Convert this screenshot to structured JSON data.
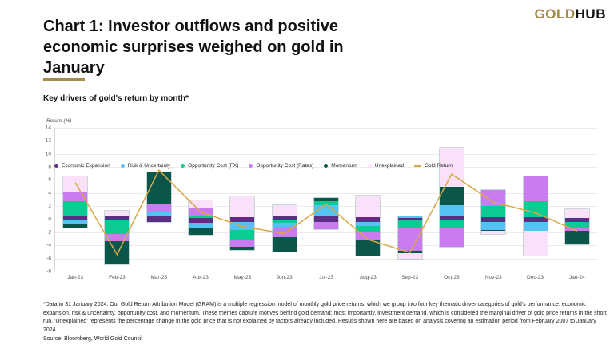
{
  "logo": {
    "gold": "GOLD",
    "hub": "HUB"
  },
  "header": {
    "title": "Chart 1: Investor outflows and positive economic surprises weighed on gold in January",
    "subtitle": "Key drivers of gold's return by month*"
  },
  "chart_data": {
    "type": "bar",
    "stacked": true,
    "title": "Key drivers of gold's return by month*",
    "ylabel": "Return (%)",
    "ylim": [
      -8,
      14
    ],
    "ytick_step": 2,
    "grid": true,
    "legend_position": "bottom",
    "categories": [
      "Jan-23",
      "Feb-23",
      "Mar-23",
      "Apr-23",
      "May-23",
      "Jun-23",
      "Jul-23",
      "Aug-23",
      "Sep-23",
      "Oct-23",
      "Nov-23",
      "Dec-23",
      "Jan-24"
    ],
    "series_colors": {
      "econ": "#5b2e84",
      "risk": "#54c3f1",
      "fx": "#0acb92",
      "rates": "#cb7bf0",
      "momentum": "#0b564a",
      "unexplained": "#f9e1fa",
      "gold": "#dba843"
    },
    "legend": [
      {
        "key": "econ",
        "label": "Economic Expansion",
        "marker": "dot"
      },
      {
        "key": "risk",
        "label": "Risk & Uncertainty",
        "marker": "dot"
      },
      {
        "key": "fx",
        "label": "Opportunity Cost (FX)",
        "marker": "dot"
      },
      {
        "key": "rates",
        "label": "Opportunity Cost (Rates)",
        "marker": "dot"
      },
      {
        "key": "momentum",
        "label": "Momentum",
        "marker": "dot"
      },
      {
        "key": "unexplained",
        "label": "Unexplained",
        "marker": "dot"
      },
      {
        "key": "gold",
        "label": "Gold Return",
        "marker": "dash"
      }
    ],
    "line_series": {
      "name": "Gold Return",
      "values": [
        5.6,
        -5.4,
        7.5,
        1.1,
        -1.1,
        -2.2,
        2.3,
        -3.1,
        -5.1,
        6.9,
        2.6,
        1.0,
        -1.8
      ]
    },
    "months": [
      {
        "label": "Jan-23",
        "gold_return": 5.6,
        "segments": [
          {
            "series": "unexplained",
            "from": 6.5,
            "to": 4.1
          },
          {
            "series": "rates",
            "from": 4.1,
            "to": 2.7
          },
          {
            "series": "fx",
            "from": 2.7,
            "to": 0.5
          },
          {
            "series": "econ",
            "from": 0.5,
            "to": -0.2
          },
          {
            "series": "risk",
            "from": -0.2,
            "to": -0.7
          },
          {
            "series": "momentum",
            "from": -0.7,
            "to": -1.3
          }
        ]
      },
      {
        "label": "Feb-23",
        "gold_return": -5.4,
        "segments": [
          {
            "series": "unexplained",
            "from": 1.3,
            "to": 0.6
          },
          {
            "series": "econ",
            "from": 0.6,
            "to": 0.0
          },
          {
            "series": "fx",
            "from": 0.0,
            "to": -2.2
          },
          {
            "series": "rates",
            "from": -2.2,
            "to": -3.4
          },
          {
            "series": "momentum",
            "from": -3.4,
            "to": -6.9
          }
        ]
      },
      {
        "label": "Mar-23",
        "gold_return": 7.5,
        "segments": [
          {
            "series": "momentum",
            "from": 7.2,
            "to": 2.4
          },
          {
            "series": "rates",
            "from": 2.4,
            "to": 1.1
          },
          {
            "series": "risk",
            "from": 1.1,
            "to": 0.4
          },
          {
            "series": "econ",
            "from": 0.4,
            "to": -0.4
          }
        ]
      },
      {
        "label": "Apr-23",
        "gold_return": 1.1,
        "segments": [
          {
            "series": "unexplained",
            "from": 2.9,
            "to": 1.7
          },
          {
            "series": "rates",
            "from": 1.7,
            "to": 0.5
          },
          {
            "series": "fx",
            "from": 0.5,
            "to": 0.2
          },
          {
            "series": "econ",
            "from": 0.2,
            "to": -0.6
          },
          {
            "series": "risk",
            "from": -0.6,
            "to": -1.3
          },
          {
            "series": "momentum",
            "from": -1.3,
            "to": -2.4
          }
        ]
      },
      {
        "label": "May-23",
        "gold_return": -1.1,
        "segments": [
          {
            "series": "unexplained",
            "from": 3.5,
            "to": 0.3
          },
          {
            "series": "econ",
            "from": 0.3,
            "to": -0.4
          },
          {
            "series": "risk",
            "from": -0.4,
            "to": -1.6
          },
          {
            "series": "fx",
            "from": -1.6,
            "to": -3.1
          },
          {
            "series": "rates",
            "from": -3.1,
            "to": -4.2
          },
          {
            "series": "momentum",
            "from": -4.2,
            "to": -4.7
          }
        ]
      },
      {
        "label": "Jun-23",
        "gold_return": -2.2,
        "segments": [
          {
            "series": "unexplained",
            "from": 2.1,
            "to": 0.6
          },
          {
            "series": "econ",
            "from": 0.6,
            "to": -0.1
          },
          {
            "series": "fx",
            "from": -0.1,
            "to": -0.6
          },
          {
            "series": "risk",
            "from": -0.6,
            "to": -1.1
          },
          {
            "series": "rates",
            "from": -1.1,
            "to": -2.8
          },
          {
            "series": "momentum",
            "from": -2.8,
            "to": -4.9
          }
        ]
      },
      {
        "label": "Jul-23",
        "gold_return": 2.3,
        "segments": [
          {
            "series": "momentum",
            "from": 3.2,
            "to": 2.7
          },
          {
            "series": "fx",
            "from": 2.7,
            "to": 2.2
          },
          {
            "series": "risk",
            "from": 2.2,
            "to": 0.4
          },
          {
            "series": "econ",
            "from": 0.4,
            "to": -0.4
          },
          {
            "series": "rates",
            "from": -0.4,
            "to": -1.5
          }
        ]
      },
      {
        "label": "Aug-23",
        "gold_return": -3.1,
        "segments": [
          {
            "series": "unexplained",
            "from": 3.6,
            "to": 0.3
          },
          {
            "series": "econ",
            "from": 0.3,
            "to": -0.4
          },
          {
            "series": "risk",
            "from": -0.4,
            "to": -1.0
          },
          {
            "series": "fx",
            "from": -1.0,
            "to": -2.0
          },
          {
            "series": "rates",
            "from": -2.0,
            "to": -3.2
          },
          {
            "series": "momentum",
            "from": -3.2,
            "to": -5.5
          }
        ]
      },
      {
        "label": "Sep-23",
        "gold_return": -5.1,
        "segments": [
          {
            "series": "risk",
            "from": 0.45,
            "to": 0.2
          },
          {
            "series": "econ",
            "from": 0.2,
            "to": -0.2
          },
          {
            "series": "fx",
            "from": -0.2,
            "to": -1.4
          },
          {
            "series": "rates",
            "from": -1.4,
            "to": -4.8
          },
          {
            "series": "momentum",
            "from": -4.8,
            "to": -5.2
          },
          {
            "series": "unexplained",
            "from": -5.2,
            "to": -6.0
          }
        ]
      },
      {
        "label": "Oct-23",
        "gold_return": 6.9,
        "segments": [
          {
            "series": "unexplained",
            "from": 11.0,
            "to": 5.0
          },
          {
            "series": "momentum",
            "from": 5.0,
            "to": 2.2
          },
          {
            "series": "risk",
            "from": 2.2,
            "to": 0.5
          },
          {
            "series": "econ",
            "from": 0.5,
            "to": -0.2
          },
          {
            "series": "fx",
            "from": -0.2,
            "to": -1.3
          },
          {
            "series": "rates",
            "from": -1.3,
            "to": -4.2
          }
        ]
      },
      {
        "label": "Nov-23",
        "gold_return": 2.6,
        "segments": [
          {
            "series": "rates",
            "from": 4.5,
            "to": 2.0
          },
          {
            "series": "fx",
            "from": 2.0,
            "to": 0.3
          },
          {
            "series": "econ",
            "from": 0.3,
            "to": -0.4
          },
          {
            "series": "risk",
            "from": -0.4,
            "to": -1.6
          },
          {
            "series": "momentum",
            "from": -1.6,
            "to": -1.8
          },
          {
            "series": "unexplained",
            "from": -1.8,
            "to": -2.3
          }
        ]
      },
      {
        "label": "Dec-23",
        "gold_return": 1.0,
        "segments": [
          {
            "series": "rates",
            "from": 6.6,
            "to": 2.7
          },
          {
            "series": "fx",
            "from": 2.7,
            "to": 0.3
          },
          {
            "series": "econ",
            "from": 0.3,
            "to": -0.4
          },
          {
            "series": "risk",
            "from": -0.4,
            "to": -1.8
          },
          {
            "series": "unexplained",
            "from": -1.8,
            "to": -5.5
          }
        ]
      },
      {
        "label": "Jan-24",
        "gold_return": -1.8,
        "segments": [
          {
            "series": "unexplained",
            "from": 1.5,
            "to": 0.2
          },
          {
            "series": "econ",
            "from": 0.2,
            "to": -0.4
          },
          {
            "series": "fx",
            "from": -0.4,
            "to": -1.4
          },
          {
            "series": "rates",
            "from": -1.4,
            "to": -1.8
          },
          {
            "series": "momentum",
            "from": -1.8,
            "to": -3.8
          }
        ]
      }
    ]
  },
  "footnote": {
    "text": "*Data to 31 January 2024. Our Gold Return Attribution Model (GRAM) is a multiple regression model of monthly gold price returns, which we group into four key thematic driver categories of gold's performance: economic expansion, risk & uncertainty, opportunity cost, and momentum. These themes capture motives behind gold demand; most importantly, investment demand, which is considered the marginal driver of gold price returns in the short run. 'Unexplained' represents the percentage change in the gold price that is not explained by factors already included. Results shown here are based on analysis covering an estimation period from February 2007 to January 2024.",
    "source": "Source: Bloomberg, World Gold Council"
  }
}
